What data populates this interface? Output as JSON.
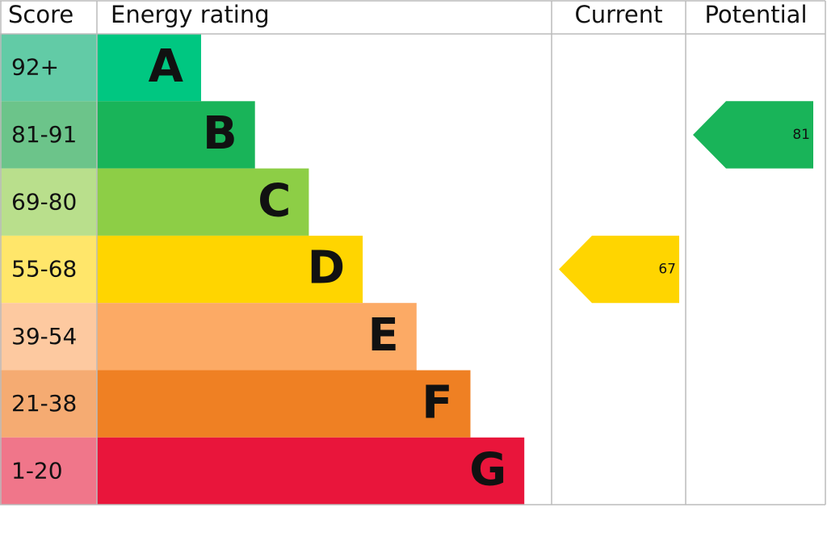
{
  "header": {
    "score": "Score",
    "rating": "Energy rating",
    "current": "Current",
    "potential": "Potential"
  },
  "bands": [
    {
      "score": "92+",
      "rating": "A",
      "color": "#00c781",
      "score_color": "#62cba6"
    },
    {
      "score": "81-91",
      "rating": "B",
      "color": "#19b459",
      "score_color": "#6cc48a"
    },
    {
      "score": "69-80",
      "rating": "C",
      "color": "#8dce46",
      "score_color": "#b9df8c"
    },
    {
      "score": "55-68",
      "rating": "D",
      "color": "#ffd500",
      "score_color": "#ffe66a"
    },
    {
      "score": "39-54",
      "rating": "E",
      "color": "#fcaa65",
      "score_color": "#fdc9a0"
    },
    {
      "score": "21-38",
      "rating": "F",
      "color": "#ef8023",
      "score_color": "#f5ab72"
    },
    {
      "score": "1-20",
      "rating": "G",
      "color": "#e9153b",
      "score_color": "#f0768a"
    }
  ],
  "current": 67,
  "potential": 81
}
